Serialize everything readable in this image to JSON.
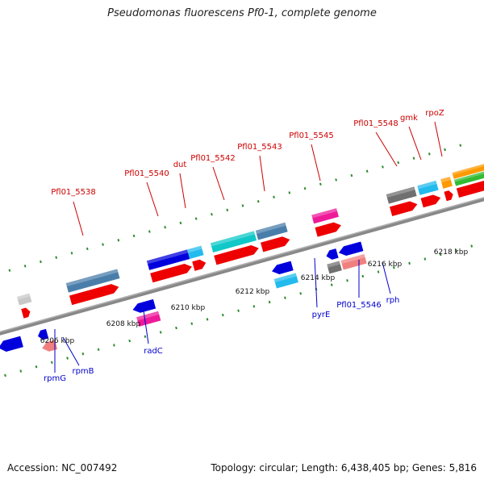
{
  "title": "Pseudomonas fluorescens Pf0-1, complete genome",
  "footer": {
    "accession": "Accession: NC_007492",
    "summary": "Topology: circular; Length: 6,438,405 bp; Genes: 5,816"
  },
  "colors": {
    "backbone": "#888888",
    "tick": "#2e8b2e",
    "forward_label": "#cc0000",
    "reverse_label": "#0000cc"
  },
  "kbp_labels": [
    "6206 kbp",
    "6208 kbp",
    "6210 kbp",
    "6212 kbp",
    "6214 kbp",
    "6216 kbp",
    "6218 kbp"
  ],
  "gene_labels_forward": [
    "Pfl01_5538",
    "Pfl01_5540",
    "dut",
    "Pfl01_5542",
    "Pfl01_5543",
    "Pfl01_5545",
    "Pfl01_5548",
    "gmk",
    "rpoZ"
  ],
  "gene_labels_reverse": [
    "rpmG",
    "rpmB",
    "radC",
    "pyrE",
    "Pfl01_5546",
    "rph"
  ]
}
